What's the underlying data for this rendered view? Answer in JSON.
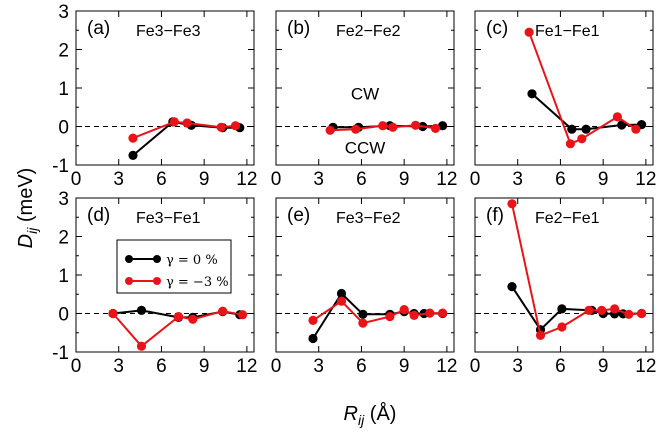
{
  "figure": {
    "ylabel_main": "D",
    "ylabel_sub": "ij",
    "ylabel_unit": " (meV)",
    "xlabel_main": "R",
    "xlabel_sub": "ij",
    "xlabel_unit": " (Å)",
    "legend": [
      {
        "label": "γ = 0 %",
        "color": "#000000"
      },
      {
        "label": "γ = −3 %",
        "color": "#e8141a"
      }
    ],
    "annotations": {
      "upper": "CW",
      "lower": "CCW"
    }
  },
  "chart_data": [
    {
      "type": "line",
      "panel": "(a)",
      "title": "Fe3−Fe3",
      "xlim": [
        0,
        12.5
      ],
      "ylim": [
        -1,
        3
      ],
      "xticks": [
        0,
        3,
        6,
        9,
        12
      ],
      "yticks": [
        -1,
        0,
        1,
        2,
        3
      ],
      "xticklabels": [
        "0",
        "3",
        "6",
        "9",
        "12"
      ],
      "yticklabels": [
        "-1",
        "0",
        "1",
        "2",
        "3"
      ],
      "series": [
        {
          "name": "γ = 0 %",
          "color": "#000000",
          "points": [
            [
              4.0,
              -0.75
            ],
            [
              6.8,
              0.12
            ],
            [
              8.1,
              0.03
            ],
            [
              10.3,
              -0.03
            ],
            [
              11.5,
              -0.03
            ]
          ]
        },
        {
          "name": "γ = −3 %",
          "color": "#e8141a",
          "points": [
            [
              4.0,
              -0.3
            ],
            [
              6.9,
              0.12
            ],
            [
              7.8,
              0.09
            ],
            [
              10.2,
              -0.02
            ],
            [
              11.2,
              0.02
            ]
          ]
        }
      ]
    },
    {
      "type": "line",
      "panel": "(b)",
      "title": "Fe2−Fe2",
      "xlim": [
        0,
        12.5
      ],
      "ylim": [
        -1,
        3
      ],
      "xticks": [
        0,
        3,
        6,
        9,
        12
      ],
      "yticks": [
        -1,
        0,
        1,
        2,
        3
      ],
      "xticklabels": [
        "0",
        "3",
        "6",
        "9",
        "12"
      ],
      "yticklabels": [
        "",
        "",
        "",
        "",
        ""
      ],
      "annotate_cw": true,
      "series": [
        {
          "name": "γ = 0 %",
          "color": "#000000",
          "points": [
            [
              4.0,
              -0.02
            ],
            [
              5.8,
              -0.02
            ],
            [
              8.0,
              0.02
            ],
            [
              10.3,
              0.0
            ],
            [
              11.7,
              0.02
            ]
          ]
        },
        {
          "name": "γ = −3 %",
          "color": "#e8141a",
          "points": [
            [
              3.8,
              -0.1
            ],
            [
              5.6,
              -0.07
            ],
            [
              7.5,
              0.02
            ],
            [
              8.2,
              -0.02
            ],
            [
              9.8,
              0.03
            ],
            [
              11.2,
              -0.05
            ]
          ]
        }
      ]
    },
    {
      "type": "line",
      "panel": "(c)",
      "title": "Fe1−Fe1",
      "xlim": [
        0,
        12.5
      ],
      "ylim": [
        -1,
        3
      ],
      "xticks": [
        0,
        3,
        6,
        9,
        12
      ],
      "yticks": [
        -1,
        0,
        1,
        2,
        3
      ],
      "xticklabels": [
        "0",
        "3",
        "6",
        "9",
        "12"
      ],
      "yticklabels": [
        "",
        "",
        "",
        "",
        ""
      ],
      "series": [
        {
          "name": "γ = 0 %",
          "color": "#000000",
          "points": [
            [
              4.0,
              0.85
            ],
            [
              6.8,
              -0.07
            ],
            [
              7.8,
              -0.07
            ],
            [
              10.3,
              0.04
            ],
            [
              11.7,
              0.05
            ]
          ]
        },
        {
          "name": "γ = −3 %",
          "color": "#e8141a",
          "points": [
            [
              3.8,
              2.45
            ],
            [
              6.7,
              -0.45
            ],
            [
              7.5,
              -0.32
            ],
            [
              10.0,
              0.25
            ],
            [
              11.3,
              -0.07
            ]
          ]
        }
      ]
    },
    {
      "type": "line",
      "panel": "(d)",
      "title": "Fe3−Fe1",
      "xlim": [
        0,
        12.5
      ],
      "ylim": [
        -1,
        3
      ],
      "xticks": [
        0,
        3,
        6,
        9,
        12
      ],
      "yticks": [
        -1,
        0,
        1,
        2,
        3
      ],
      "xticklabels": [
        "0",
        "3",
        "6",
        "9",
        "12"
      ],
      "yticklabels": [
        "-1",
        "0",
        "1",
        "2",
        "3"
      ],
      "series": [
        {
          "name": "γ = 0 %",
          "color": "#000000",
          "points": [
            [
              2.6,
              0.0
            ],
            [
              4.6,
              0.08
            ],
            [
              7.2,
              -0.1
            ],
            [
              8.2,
              -0.1
            ],
            [
              10.3,
              0.05
            ],
            [
              11.5,
              -0.03
            ]
          ]
        },
        {
          "name": "γ = −3 %",
          "color": "#e8141a",
          "points": [
            [
              2.6,
              0.0
            ],
            [
              4.6,
              -0.85
            ],
            [
              7.2,
              -0.08
            ],
            [
              8.2,
              -0.15
            ],
            [
              10.3,
              0.06
            ],
            [
              11.7,
              -0.03
            ]
          ]
        }
      ]
    },
    {
      "type": "line",
      "panel": "(e)",
      "title": "Fe3−Fe2",
      "xlim": [
        0,
        12.5
      ],
      "ylim": [
        -1,
        3
      ],
      "xticks": [
        0,
        3,
        6,
        9,
        12
      ],
      "yticks": [
        -1,
        0,
        1,
        2,
        3
      ],
      "xticklabels": [
        "0",
        "3",
        "6",
        "9",
        "12"
      ],
      "yticklabels": [
        "",
        "",
        "",
        "",
        ""
      ],
      "series": [
        {
          "name": "γ = 0 %",
          "color": "#000000",
          "points": [
            [
              2.6,
              -0.65
            ],
            [
              4.6,
              0.52
            ],
            [
              6.1,
              -0.02
            ],
            [
              8.0,
              -0.02
            ],
            [
              9.0,
              0.05
            ],
            [
              9.7,
              0.0
            ],
            [
              10.4,
              0.0
            ],
            [
              11.7,
              0.0
            ]
          ]
        },
        {
          "name": "γ = −3 %",
          "color": "#e8141a",
          "points": [
            [
              2.6,
              -0.18
            ],
            [
              4.6,
              0.32
            ],
            [
              6.1,
              -0.25
            ],
            [
              8.0,
              -0.08
            ],
            [
              9.0,
              0.1
            ],
            [
              9.7,
              -0.05
            ],
            [
              10.8,
              0.01
            ],
            [
              11.7,
              0.01
            ]
          ]
        }
      ]
    },
    {
      "type": "line",
      "panel": "(f)",
      "title": "Fe2−Fe1",
      "xlim": [
        0,
        12.5
      ],
      "ylim": [
        -1,
        3
      ],
      "xticks": [
        0,
        3,
        6,
        9,
        12
      ],
      "yticks": [
        -1,
        0,
        1,
        2,
        3
      ],
      "xticklabels": [
        "0",
        "3",
        "6",
        "9",
        "12"
      ],
      "yticklabels": [
        "",
        "",
        "",
        "",
        ""
      ],
      "series": [
        {
          "name": "γ = 0 %",
          "color": "#000000",
          "points": [
            [
              2.6,
              0.7
            ],
            [
              4.6,
              -0.42
            ],
            [
              6.1,
              0.12
            ],
            [
              8.2,
              0.08
            ],
            [
              9.0,
              0.0
            ],
            [
              9.8,
              -0.01
            ],
            [
              10.4,
              -0.01
            ],
            [
              11.7,
              0.0
            ]
          ]
        },
        {
          "name": "γ = −3 %",
          "color": "#e8141a",
          "points": [
            [
              2.6,
              2.85
            ],
            [
              4.6,
              -0.57
            ],
            [
              6.1,
              -0.35
            ],
            [
              8.0,
              0.08
            ],
            [
              8.9,
              0.08
            ],
            [
              9.8,
              0.12
            ],
            [
              10.8,
              -0.02
            ],
            [
              11.7,
              0.0
            ]
          ]
        }
      ]
    }
  ]
}
